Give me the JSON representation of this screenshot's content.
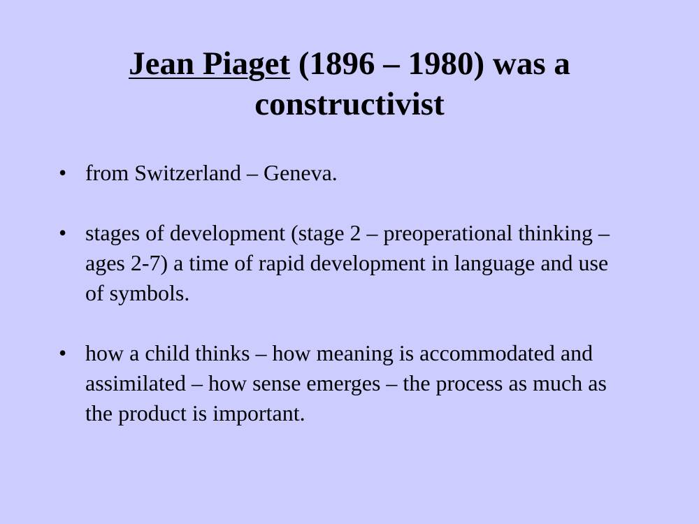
{
  "slide": {
    "title": {
      "link_text": "Jean Piaget",
      "rest_line1": " (1896 – 1980) was a",
      "line2": "constructivist"
    },
    "bullet_symbol": "•",
    "bullets": [
      {
        "text": "from Switzerland – Geneva."
      },
      {
        "text": "stages of development (stage 2 – preoperational thinking – ages 2-7) a time of rapid development in language and use of symbols."
      },
      {
        "text": "how a child thinks – how meaning is accommodated and assimilated – how sense emerges – the process as much as the product is important."
      }
    ]
  }
}
